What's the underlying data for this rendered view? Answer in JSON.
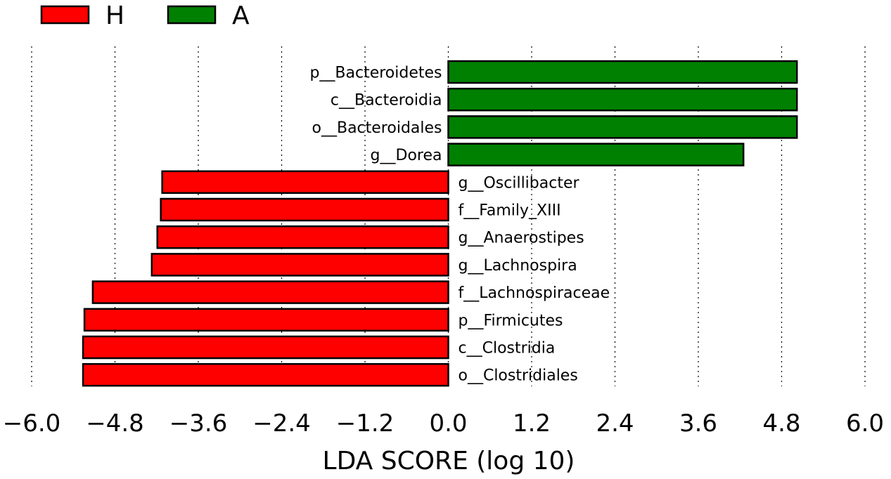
{
  "chart_data": {
    "type": "bar",
    "orientation": "horizontal",
    "title": "",
    "xlabel": "LDA SCORE (log 10)",
    "ylabel": "",
    "xlim": [
      -6.0,
      6.0
    ],
    "xticks": [
      "−6.0",
      "−4.8",
      "−3.6",
      "−2.4",
      "−1.2",
      "0.0",
      "1.2",
      "2.4",
      "3.6",
      "4.8",
      "6.0"
    ],
    "xtick_values": [
      -6.0,
      -4.8,
      -3.6,
      -2.4,
      -1.2,
      0.0,
      1.2,
      2.4,
      3.6,
      4.8,
      6.0
    ],
    "grid": "vertical dotted",
    "legend": [
      {
        "name": "H",
        "color": "#ff0000"
      },
      {
        "name": "A",
        "color": "#008000"
      }
    ],
    "legend_position": "top-left",
    "bars": [
      {
        "label": "p__Bacteroidetes",
        "value": 5.02,
        "group": "A"
      },
      {
        "label": "c__Bacteroidia",
        "value": 5.02,
        "group": "A"
      },
      {
        "label": "o__Bacteroidales",
        "value": 5.02,
        "group": "A"
      },
      {
        "label": "g__Dorea",
        "value": 4.25,
        "group": "A"
      },
      {
        "label": "g__Oscillibacter",
        "value": -4.12,
        "group": "H"
      },
      {
        "label": "f__Family_XIII",
        "value": -4.14,
        "group": "H"
      },
      {
        "label": "g__Anaerostipes",
        "value": -4.19,
        "group": "H"
      },
      {
        "label": "g__Lachnospira",
        "value": -4.27,
        "group": "H"
      },
      {
        "label": "f__Lachnospiraceae",
        "value": -5.12,
        "group": "H"
      },
      {
        "label": "p__Firmicutes",
        "value": -5.24,
        "group": "H"
      },
      {
        "label": "c__Clostridia",
        "value": -5.26,
        "group": "H"
      },
      {
        "label": "o__Clostridiales",
        "value": -5.26,
        "group": "H"
      }
    ]
  }
}
